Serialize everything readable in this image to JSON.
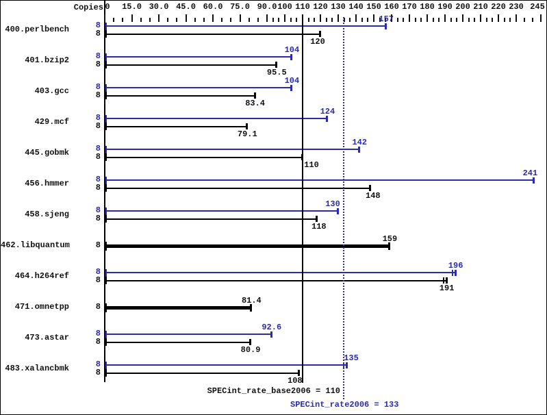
{
  "header": {
    "copies_label": "Copies"
  },
  "colors": {
    "peak_blue": "#2b2bb0",
    "base_black": "#000000",
    "background": "#ffffff",
    "frame": "#000000"
  },
  "chart_data": {
    "type": "bar",
    "orientation": "horizontal",
    "legend": "none",
    "axis_position": "top",
    "axis": {
      "ticks": [
        {
          "label": "0",
          "value": 0
        },
        {
          "label": "15.0",
          "value": 15
        },
        {
          "label": "30.0",
          "value": 30
        },
        {
          "label": "45.0",
          "value": 45
        },
        {
          "label": "60.0",
          "value": 60
        },
        {
          "label": "75.0",
          "value": 75
        },
        {
          "label": "90.0",
          "value": 90
        },
        {
          "label": "100",
          "value": 100
        },
        {
          "label": "110",
          "value": 110
        },
        {
          "label": "120",
          "value": 120
        },
        {
          "label": "130",
          "value": 130
        },
        {
          "label": "140",
          "value": 140
        },
        {
          "label": "150",
          "value": 150
        },
        {
          "label": "160",
          "value": 160
        },
        {
          "label": "170",
          "value": 170
        },
        {
          "label": "180",
          "value": 180
        },
        {
          "label": "190",
          "value": 190
        },
        {
          "label": "200",
          "value": 200
        },
        {
          "label": "210",
          "value": 210
        },
        {
          "label": "220",
          "value": 220
        },
        {
          "label": "230",
          "value": 230
        },
        {
          "label": "245",
          "value": 245
        }
      ],
      "minors_per_segment": 2
    },
    "reference_lines": [
      {
        "name": "base",
        "value": 110,
        "style": "solid",
        "color": "#000000"
      },
      {
        "name": "peak",
        "value": 133,
        "style": "dotted",
        "color": "#2b2bb0"
      }
    ],
    "captions": {
      "base": "SPECint_rate_base2006 = 110",
      "peak": "SPECint_rate2006 = 133"
    },
    "benchmarks": [
      {
        "name": "400.perlbench",
        "bars": [
          {
            "kind": "peak",
            "copies": "8",
            "value": 157,
            "label": "157"
          },
          {
            "kind": "base",
            "copies": "8",
            "value": 120,
            "label": "120",
            "label_dx": -4
          }
        ]
      },
      {
        "name": "401.bzip2",
        "bars": [
          {
            "kind": "peak",
            "copies": "8",
            "value": 104,
            "label": "104"
          },
          {
            "kind": "base",
            "copies": "8",
            "value": 95.5,
            "label": "95.5"
          }
        ]
      },
      {
        "name": "403.gcc",
        "bars": [
          {
            "kind": "peak",
            "copies": "8",
            "value": 104,
            "label": "104"
          },
          {
            "kind": "base",
            "copies": "8",
            "value": 83.4,
            "label": "83.4"
          }
        ]
      },
      {
        "name": "429.mcf",
        "bars": [
          {
            "kind": "peak",
            "copies": "8",
            "value": 124,
            "label": "124"
          },
          {
            "kind": "base",
            "copies": "8",
            "value": 79.1,
            "label": "79.1"
          }
        ]
      },
      {
        "name": "445.gobmk",
        "bars": [
          {
            "kind": "peak",
            "copies": "8",
            "value": 142,
            "label": "142"
          },
          {
            "kind": "base",
            "copies": "8",
            "value": 110,
            "label": "110",
            "label_dx": 13
          }
        ]
      },
      {
        "name": "456.hmmer",
        "bars": [
          {
            "kind": "peak",
            "copies": "8",
            "value": 241,
            "label": "241",
            "label_dx": -6
          },
          {
            "kind": "base",
            "copies": "8",
            "value": 148,
            "label": "148",
            "label_dx": 4
          }
        ]
      },
      {
        "name": "458.sjeng",
        "bars": [
          {
            "kind": "peak",
            "copies": "8",
            "value": 130,
            "label": "130",
            "label_dx": -8
          },
          {
            "kind": "base",
            "copies": "8",
            "value": 118,
            "label": "118",
            "label_dx": 3
          }
        ]
      },
      {
        "name": "462.libquantum",
        "bars": [
          {
            "kind": "both",
            "copies": "8",
            "value": 159,
            "label": "159"
          }
        ]
      },
      {
        "name": "464.h264ref",
        "bars": [
          {
            "kind": "peak",
            "copies": "8",
            "value": 196,
            "label": "196",
            "cap": "double"
          },
          {
            "kind": "base",
            "copies": "8",
            "value": 191,
            "label": "191",
            "cap": "double"
          }
        ]
      },
      {
        "name": "471.omnetpp",
        "bars": [
          {
            "kind": "both",
            "copies": "8",
            "value": 81.4,
            "label": "81.4"
          }
        ]
      },
      {
        "name": "473.astar",
        "bars": [
          {
            "kind": "peak",
            "copies": "8",
            "value": 92.6,
            "label": "92.6"
          },
          {
            "kind": "base",
            "copies": "8",
            "value": 80.9,
            "label": "80.9"
          }
        ]
      },
      {
        "name": "483.xalancbmk",
        "bars": [
          {
            "kind": "peak",
            "copies": "8",
            "value": 135,
            "label": "135",
            "cap": "double",
            "label_dx": 6
          },
          {
            "kind": "base",
            "copies": "8",
            "value": 108,
            "label": "108",
            "label_dx": -6
          }
        ]
      }
    ]
  }
}
